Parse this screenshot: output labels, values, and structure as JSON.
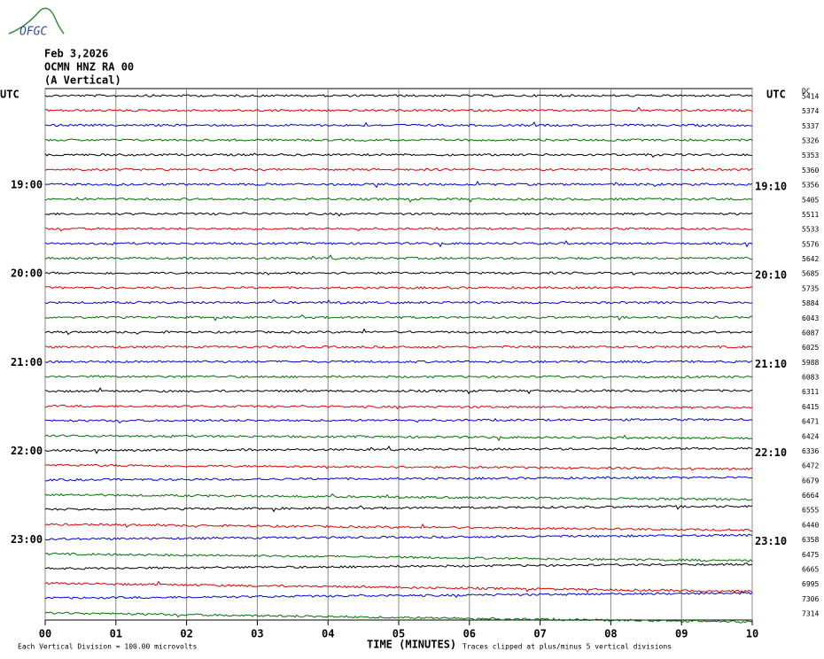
{
  "chart_data": {
    "type": "helicorder",
    "logo": "OFGC",
    "title_lines": [
      "Feb 3,2026",
      "OCMN HNZ RA 00",
      "(A Vertical)"
    ],
    "left_header": "UTC",
    "right_header": "UTC",
    "dc_header": "DC",
    "left_labels": [
      null,
      null,
      null,
      null,
      null,
      null,
      "19:00",
      null,
      null,
      null,
      null,
      null,
      "20:00",
      null,
      null,
      null,
      null,
      null,
      "21:00",
      null,
      null,
      null,
      null,
      null,
      "22:00",
      null,
      null,
      null,
      null,
      null,
      "23:00",
      null,
      null,
      null,
      null,
      null
    ],
    "right_labels": [
      null,
      null,
      null,
      null,
      null,
      null,
      "19:10",
      null,
      null,
      null,
      null,
      null,
      "20:10",
      null,
      null,
      null,
      null,
      null,
      "21:10",
      null,
      null,
      null,
      null,
      null,
      "22:10",
      null,
      null,
      null,
      null,
      null,
      "23:10",
      null,
      null,
      null,
      null,
      null
    ],
    "dc_values": [
      5414,
      5374,
      5337,
      5326,
      5353,
      5360,
      5356,
      5405,
      5511,
      5533,
      5576,
      5642,
      5685,
      5735,
      5884,
      6043,
      6087,
      6025,
      5988,
      6083,
      6311,
      6415,
      6471,
      6424,
      6336,
      6472,
      6679,
      6664,
      6555,
      6440,
      6358,
      6475,
      6665,
      6995,
      7306,
      7314
    ],
    "trace_colors": [
      "#000000",
      "#e00000",
      "#0000e0",
      "#007000"
    ],
    "xlim": [
      0,
      10
    ],
    "xticks": [
      {
        "value": 0,
        "label": "00"
      },
      {
        "value": 1,
        "label": "01"
      },
      {
        "value": 2,
        "label": "02"
      },
      {
        "value": 3,
        "label": "03"
      },
      {
        "value": 4,
        "label": "04"
      },
      {
        "value": 5,
        "label": "05"
      },
      {
        "value": 6,
        "label": "06"
      },
      {
        "value": 7,
        "label": "07"
      },
      {
        "value": 8,
        "label": "08"
      },
      {
        "value": 9,
        "label": "09"
      },
      {
        "value": 10,
        "label": "10"
      }
    ],
    "x_label": "TIME (MINUTES)",
    "scale_note": "Each Vertical Division =  100.00 microvolts",
    "clip_note": "Traces clipped at plus/minus 5 vertical divisions",
    "grid": true
  }
}
